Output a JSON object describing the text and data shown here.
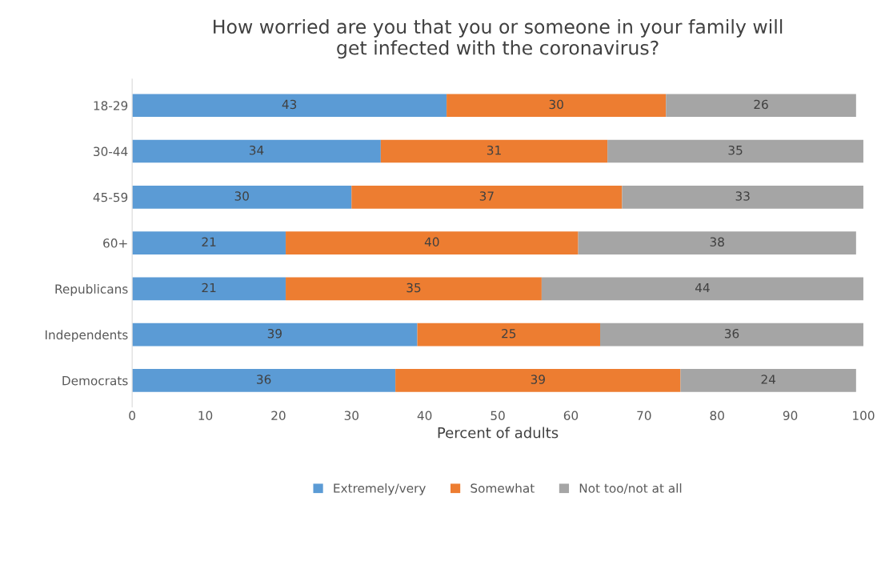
{
  "chart_data": {
    "type": "bar",
    "orientation": "horizontal",
    "stacked": true,
    "title": "How worried are you that you or someone in your family will\nget infected with the coronavirus?",
    "xlabel": "Percent of adults",
    "categories": [
      "18-29",
      "30-44",
      "45-59",
      "60+",
      "Republicans",
      "Independents",
      "Democrats"
    ],
    "series": [
      {
        "name": "Extremely/very",
        "color": "#5b9bd5",
        "values": [
          43,
          34,
          30,
          21,
          21,
          39,
          36
        ]
      },
      {
        "name": "Somewhat",
        "color": "#ed7d31",
        "values": [
          30,
          31,
          37,
          40,
          35,
          25,
          39
        ]
      },
      {
        "name": "Not too/not at all",
        "color": "#a5a5a5",
        "values": [
          26,
          35,
          33,
          38,
          44,
          36,
          24
        ]
      }
    ],
    "xlim": [
      0,
      100
    ],
    "xticks": [
      0,
      10,
      20,
      30,
      40,
      50,
      60,
      70,
      80,
      90,
      100
    ],
    "grid": false,
    "legend": "bottom",
    "data_labels": true
  }
}
